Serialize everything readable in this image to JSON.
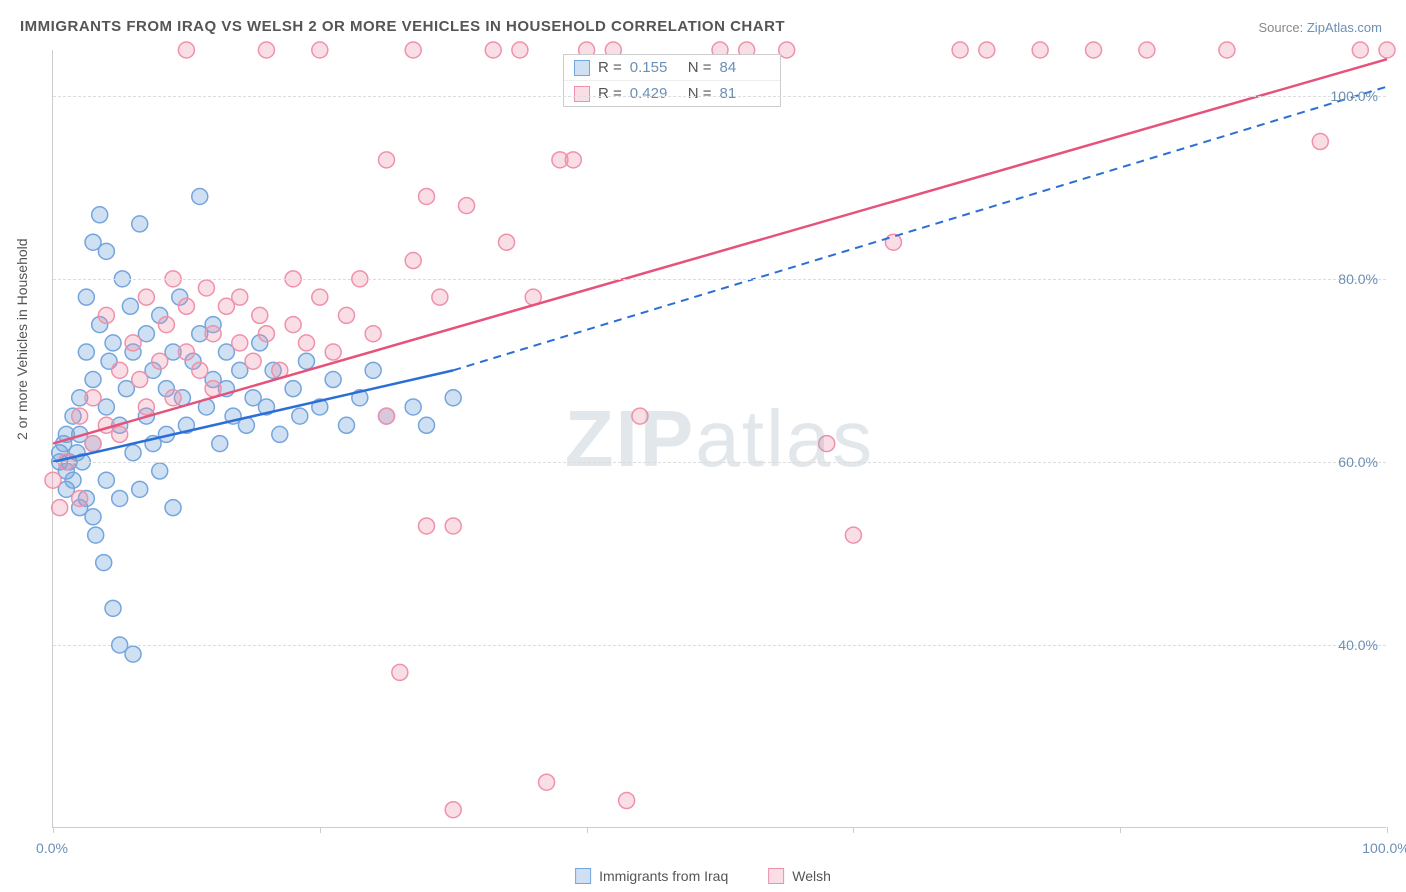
{
  "title": "IMMIGRANTS FROM IRAQ VS WELSH 2 OR MORE VEHICLES IN HOUSEHOLD CORRELATION CHART",
  "source_prefix": "Source: ",
  "source_link": "ZipAtlas.com",
  "y_axis_label": "2 or more Vehicles in Household",
  "watermark_a": "ZIP",
  "watermark_b": "atlas",
  "chart": {
    "type": "scatter",
    "background_color": "#ffffff",
    "grid_color": "#dddddd",
    "axis_color": "#cccccc",
    "tick_label_color": "#6b8fb5",
    "label_color": "#555555",
    "label_fontsize": 14,
    "xlim": [
      0,
      100
    ],
    "ylim": [
      20,
      105
    ],
    "y_ticks": [
      40,
      60,
      80,
      100
    ],
    "y_tick_labels": [
      "40.0%",
      "60.0%",
      "80.0%",
      "100.0%"
    ],
    "x_ticks": [
      0,
      20,
      40,
      60,
      80,
      100
    ],
    "x_tick_labels_shown": {
      "0": "0.0%",
      "100": "100.0%"
    },
    "marker_radius": 8,
    "marker_stroke_width": 1.5,
    "trendline_width": 2.5,
    "series": [
      {
        "name": "Immigrants from Iraq",
        "fill_color": "rgba(117,165,222,0.35)",
        "stroke_color": "#75a5de",
        "trend_color": "#2b6fd6",
        "R": "0.155",
        "N": "84",
        "trend_solid": {
          "x1": 0,
          "y1": 60,
          "x2": 30,
          "y2": 70
        },
        "trend_dash": {
          "x1": 30,
          "y1": 70,
          "x2": 100,
          "y2": 101
        },
        "points": [
          [
            0.5,
            60
          ],
          [
            0.5,
            61
          ],
          [
            0.8,
            62
          ],
          [
            1,
            59
          ],
          [
            1,
            63
          ],
          [
            1,
            57
          ],
          [
            1.2,
            60
          ],
          [
            1.5,
            65
          ],
          [
            1.5,
            58
          ],
          [
            1.8,
            61
          ],
          [
            2,
            55
          ],
          [
            2,
            67
          ],
          [
            2,
            63
          ],
          [
            2.2,
            60
          ],
          [
            2.5,
            72
          ],
          [
            2.5,
            56
          ],
          [
            2.5,
            78
          ],
          [
            3,
            54
          ],
          [
            3,
            69
          ],
          [
            3,
            62
          ],
          [
            3,
            84
          ],
          [
            3.2,
            52
          ],
          [
            3.5,
            75
          ],
          [
            3.5,
            87
          ],
          [
            3.8,
            49
          ],
          [
            4,
            83
          ],
          [
            4,
            66
          ],
          [
            4,
            58
          ],
          [
            4.2,
            71
          ],
          [
            4.5,
            73
          ],
          [
            4.5,
            44
          ],
          [
            5,
            56
          ],
          [
            5,
            64
          ],
          [
            5,
            40
          ],
          [
            5.2,
            80
          ],
          [
            5.5,
            68
          ],
          [
            5.8,
            77
          ],
          [
            6,
            39
          ],
          [
            6,
            61
          ],
          [
            6,
            72
          ],
          [
            6.5,
            57
          ],
          [
            6.5,
            86
          ],
          [
            7,
            65
          ],
          [
            7,
            74
          ],
          [
            7.5,
            70
          ],
          [
            7.5,
            62
          ],
          [
            8,
            59
          ],
          [
            8,
            76
          ],
          [
            8.5,
            68
          ],
          [
            8.5,
            63
          ],
          [
            9,
            72
          ],
          [
            9,
            55
          ],
          [
            9.5,
            78
          ],
          [
            9.7,
            67
          ],
          [
            10,
            64
          ],
          [
            10.5,
            71
          ],
          [
            11,
            74
          ],
          [
            11,
            89
          ],
          [
            11.5,
            66
          ],
          [
            12,
            69
          ],
          [
            12,
            75
          ],
          [
            12.5,
            62
          ],
          [
            13,
            72
          ],
          [
            13,
            68
          ],
          [
            13.5,
            65
          ],
          [
            14,
            70
          ],
          [
            14.5,
            64
          ],
          [
            15,
            67
          ],
          [
            15.5,
            73
          ],
          [
            16,
            66
          ],
          [
            16.5,
            70
          ],
          [
            17,
            63
          ],
          [
            18,
            68
          ],
          [
            18.5,
            65
          ],
          [
            19,
            71
          ],
          [
            20,
            66
          ],
          [
            21,
            69
          ],
          [
            22,
            64
          ],
          [
            23,
            67
          ],
          [
            24,
            70
          ],
          [
            25,
            65
          ],
          [
            27,
            66
          ],
          [
            28,
            64
          ],
          [
            30,
            67
          ]
        ]
      },
      {
        "name": "Welsh",
        "fill_color": "rgba(240,145,170,0.3)",
        "stroke_color": "#f091aa",
        "trend_color": "#e6537a",
        "R": "0.429",
        "N": "81",
        "trend_solid": {
          "x1": 0,
          "y1": 62,
          "x2": 100,
          "y2": 104
        },
        "trend_dash": null,
        "points": [
          [
            0,
            58
          ],
          [
            0.5,
            55
          ],
          [
            1,
            60
          ],
          [
            2,
            65
          ],
          [
            2,
            56
          ],
          [
            3,
            62
          ],
          [
            3,
            67
          ],
          [
            4,
            64
          ],
          [
            4,
            76
          ],
          [
            5,
            70
          ],
          [
            5,
            63
          ],
          [
            6,
            73
          ],
          [
            6.5,
            69
          ],
          [
            7,
            78
          ],
          [
            7,
            66
          ],
          [
            8,
            71
          ],
          [
            8.5,
            75
          ],
          [
            9,
            67
          ],
          [
            9,
            80
          ],
          [
            10,
            72
          ],
          [
            10,
            77
          ],
          [
            11,
            70
          ],
          [
            11.5,
            79
          ],
          [
            12,
            74
          ],
          [
            12,
            68
          ],
          [
            13,
            77
          ],
          [
            10,
            105
          ],
          [
            14,
            73
          ],
          [
            14,
            78
          ],
          [
            15,
            71
          ],
          [
            15.5,
            76
          ],
          [
            16,
            74
          ],
          [
            16,
            105
          ],
          [
            17,
            70
          ],
          [
            18,
            75
          ],
          [
            18,
            80
          ],
          [
            19,
            73
          ],
          [
            20,
            78
          ],
          [
            20,
            105
          ],
          [
            21,
            72
          ],
          [
            22,
            76
          ],
          [
            23,
            80
          ],
          [
            24,
            74
          ],
          [
            25,
            93
          ],
          [
            25,
            65
          ],
          [
            26,
            37
          ],
          [
            27,
            105
          ],
          [
            27,
            82
          ],
          [
            28,
            53
          ],
          [
            28,
            89
          ],
          [
            29,
            78
          ],
          [
            30,
            53
          ],
          [
            30,
            22
          ],
          [
            31,
            88
          ],
          [
            33,
            105
          ],
          [
            34,
            84
          ],
          [
            35,
            105
          ],
          [
            36,
            78
          ],
          [
            37,
            25
          ],
          [
            38,
            93
          ],
          [
            39,
            93
          ],
          [
            40,
            105
          ],
          [
            41,
            103
          ],
          [
            42,
            105
          ],
          [
            43,
            23
          ],
          [
            44,
            65
          ],
          [
            50,
            105
          ],
          [
            52,
            105
          ],
          [
            55,
            105
          ],
          [
            58,
            62
          ],
          [
            60,
            52
          ],
          [
            63,
            84
          ],
          [
            68,
            105
          ],
          [
            70,
            105
          ],
          [
            74,
            105
          ],
          [
            78,
            105
          ],
          [
            82,
            105
          ],
          [
            88,
            105
          ],
          [
            95,
            95
          ],
          [
            98,
            105
          ],
          [
            100,
            105
          ]
        ]
      }
    ]
  },
  "stats_labels": {
    "R": "R =",
    "N": "N ="
  },
  "legend": {
    "series1_label": "Immigrants from Iraq",
    "series2_label": "Welsh"
  }
}
